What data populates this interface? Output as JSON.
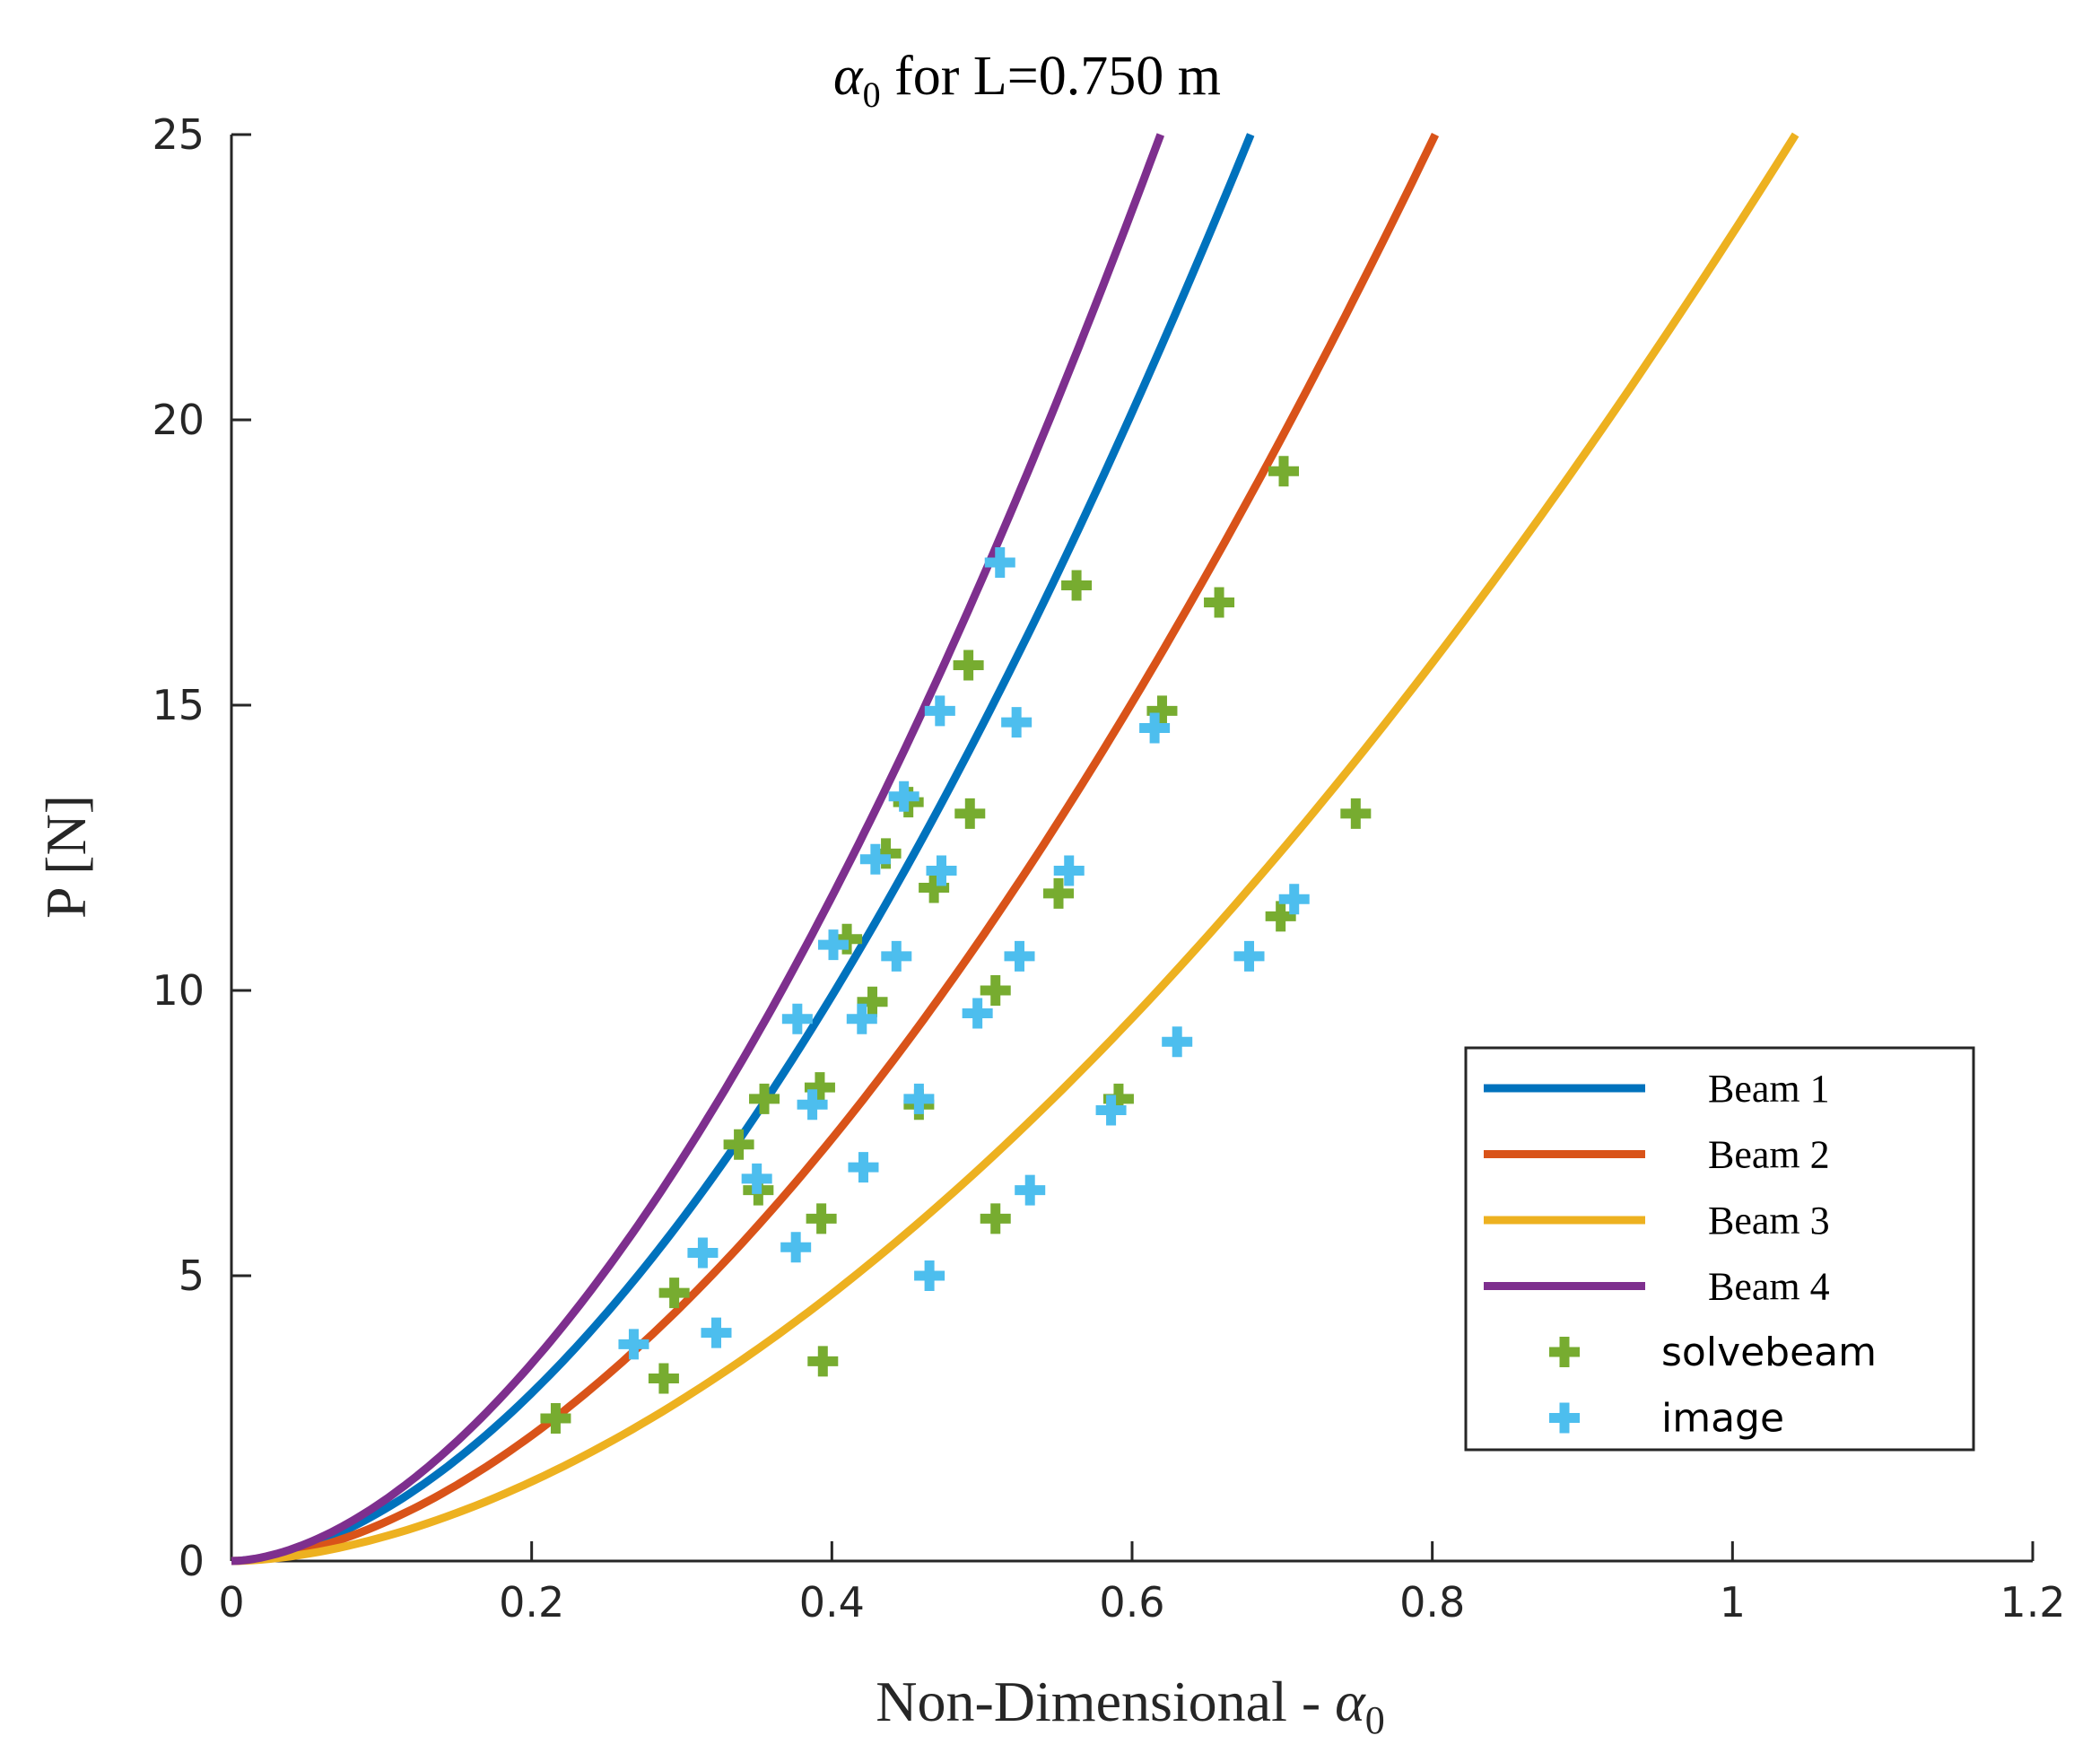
{
  "chart_data": {
    "type": "line",
    "title": "α0 for L=0.750 m",
    "title_parts": {
      "symbol": "α",
      "subscript": "0",
      "rest": " for L=0.750 m"
    },
    "xlabel": "Non-Dimensional - α0",
    "xlabel_parts": {
      "text": "Non-Dimensional - ",
      "symbol": "α",
      "subscript": "0"
    },
    "ylabel": "P [N]",
    "xlim": [
      0,
      1.2
    ],
    "ylim": [
      0,
      25
    ],
    "xticks": [
      0,
      0.2,
      0.4,
      0.6,
      0.8,
      1,
      1.2
    ],
    "xtick_labels": [
      "0",
      "0.2",
      "0.4",
      "0.6",
      "0.8",
      "1",
      "1.2"
    ],
    "yticks": [
      0,
      5,
      10,
      15,
      20,
      25
    ],
    "ytick_labels": [
      "0",
      "5",
      "10",
      "15",
      "20",
      "25"
    ],
    "grid": false,
    "legend_position": "lower-right",
    "series": [
      {
        "name": "Beam 1",
        "kind": "line",
        "color": "#0072BD",
        "curve": {
          "end_x": 0.679,
          "end_y": 25,
          "exponent": 1.75
        }
      },
      {
        "name": "Beam 2",
        "kind": "line",
        "color": "#D95319",
        "curve": {
          "end_x": 0.802,
          "end_y": 25,
          "exponent": 1.75
        }
      },
      {
        "name": "Beam 3",
        "kind": "line",
        "color": "#EDB120",
        "curve": {
          "end_x": 1.042,
          "end_y": 25,
          "exponent": 1.75
        }
      },
      {
        "name": "Beam 4",
        "kind": "line",
        "color": "#7E2F8E",
        "curve": {
          "end_x": 0.619,
          "end_y": 25,
          "exponent": 1.75
        }
      },
      {
        "name": "solvebeam",
        "kind": "marker",
        "color": "#77AC30",
        "points": [
          [
            0.216,
            2.5
          ],
          [
            0.295,
            4.7
          ],
          [
            0.351,
            6.5
          ],
          [
            0.392,
            8.3
          ],
          [
            0.427,
            9.8
          ],
          [
            0.468,
            11.8
          ],
          [
            0.492,
            13.1
          ],
          [
            0.563,
            17.1
          ],
          [
            0.288,
            3.2
          ],
          [
            0.393,
            6.0
          ],
          [
            0.458,
            8.0
          ],
          [
            0.509,
            10.0
          ],
          [
            0.551,
            11.7
          ],
          [
            0.62,
            14.9
          ],
          [
            0.658,
            16.8
          ],
          [
            0.701,
            19.1
          ],
          [
            0.394,
            3.5
          ],
          [
            0.509,
            6.0
          ],
          [
            0.591,
            8.1
          ],
          [
            0.699,
            11.3
          ],
          [
            0.749,
            13.1
          ],
          [
            0.338,
            7.3
          ],
          [
            0.355,
            8.1
          ],
          [
            0.41,
            10.9
          ],
          [
            0.436,
            12.4
          ],
          [
            0.451,
            13.3
          ],
          [
            0.491,
            15.7
          ]
        ]
      },
      {
        "name": "image",
        "kind": "marker",
        "color": "#4DBEEE",
        "points": [
          [
            0.268,
            3.8
          ],
          [
            0.314,
            5.4
          ],
          [
            0.35,
            6.7
          ],
          [
            0.387,
            8.0
          ],
          [
            0.42,
            9.5
          ],
          [
            0.443,
            10.6
          ],
          [
            0.473,
            12.1
          ],
          [
            0.523,
            14.7
          ],
          [
            0.323,
            4.0
          ],
          [
            0.376,
            5.5
          ],
          [
            0.421,
            6.9
          ],
          [
            0.458,
            8.1
          ],
          [
            0.497,
            9.6
          ],
          [
            0.525,
            10.6
          ],
          [
            0.558,
            12.1
          ],
          [
            0.615,
            14.6
          ],
          [
            0.465,
            5.0
          ],
          [
            0.532,
            6.5
          ],
          [
            0.586,
            7.9
          ],
          [
            0.63,
            9.1
          ],
          [
            0.678,
            10.6
          ],
          [
            0.708,
            11.6
          ],
          [
            0.377,
            9.5
          ],
          [
            0.401,
            10.8
          ],
          [
            0.429,
            12.3
          ],
          [
            0.448,
            13.4
          ],
          [
            0.472,
            14.9
          ],
          [
            0.512,
            17.5
          ]
        ]
      }
    ]
  }
}
